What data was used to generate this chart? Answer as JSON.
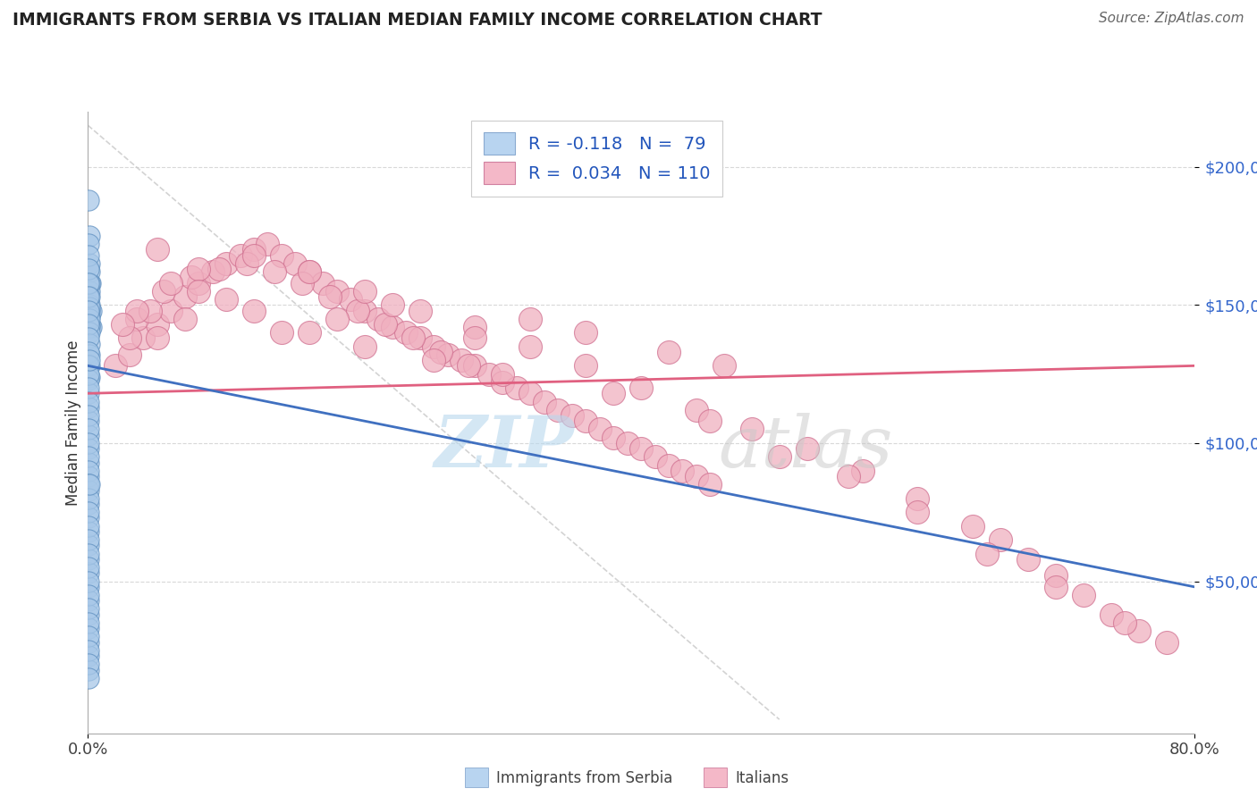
{
  "title": "IMMIGRANTS FROM SERBIA VS ITALIAN MEDIAN FAMILY INCOME CORRELATION CHART",
  "source": "Source: ZipAtlas.com",
  "ylabel": "Median Family Income",
  "xlim": [
    0.0,
    80.0
  ],
  "ylim": [
    -5000,
    220000
  ],
  "y_ticks": [
    50000,
    100000,
    150000,
    200000
  ],
  "serbia_color": "#a8c8e8",
  "serbia_edge_color": "#6090c0",
  "serbia_line_color": "#4070c0",
  "italian_color": "#f0b0c0",
  "italian_edge_color": "#d07090",
  "italian_line_color": "#e06080",
  "legend_label_blue": "R = -0.118   N =  79",
  "legend_label_pink": "R =  0.034   N = 110",
  "legend_color_blue": "#b8d4f0",
  "legend_color_pink": "#f4b8c8",
  "watermark_zip": "ZIP",
  "watermark_atlas": "atlas",
  "bottom_label_serbia": "Immigrants from Serbia",
  "bottom_label_italian": "Italians",
  "serbia_x": [
    0.05,
    0.08,
    0.12,
    0.15,
    0.2,
    0.25,
    0.05,
    0.08,
    0.1,
    0.12,
    0.05,
    0.08,
    0.1,
    0.12,
    0.05,
    0.08,
    0.1,
    0.05,
    0.08,
    0.1,
    0.05,
    0.08,
    0.05,
    0.08,
    0.05,
    0.08,
    0.05,
    0.08,
    0.05,
    0.08,
    0.05,
    0.08,
    0.05,
    0.05,
    0.05,
    0.05,
    0.05,
    0.05,
    0.05,
    0.05,
    0.05,
    0.05,
    0.05,
    0.05,
    0.05,
    0.05,
    0.05,
    0.05,
    0.05,
    0.05,
    0.05,
    0.05,
    0.05,
    0.05,
    0.05,
    0.05,
    0.05,
    0.05,
    0.05,
    0.05,
    0.05,
    0.05,
    0.05,
    0.05,
    0.05,
    0.05,
    0.05,
    0.05,
    0.05,
    0.05,
    0.05,
    0.05,
    0.05,
    0.05,
    0.05,
    0.05,
    0.05,
    0.08,
    0.12
  ],
  "serbia_y": [
    188000,
    175000,
    165000,
    158000,
    148000,
    142000,
    172000,
    162000,
    155000,
    148000,
    168000,
    158000,
    150000,
    143000,
    163000,
    153000,
    146000,
    158000,
    149000,
    142000,
    153000,
    145000,
    148000,
    140000,
    143000,
    136000,
    138000,
    132000,
    133000,
    128000,
    128000,
    124000,
    123000,
    118000,
    113000,
    108000,
    103000,
    98000,
    93000,
    88000,
    83000,
    78000,
    73000,
    68000,
    63000,
    58000,
    53000,
    48000,
    43000,
    38000,
    33000,
    28000,
    23000,
    18000,
    125000,
    120000,
    115000,
    110000,
    105000,
    100000,
    95000,
    90000,
    85000,
    80000,
    75000,
    70000,
    65000,
    60000,
    55000,
    50000,
    45000,
    40000,
    35000,
    30000,
    25000,
    20000,
    15000,
    130000,
    85000
  ],
  "italian_x": [
    2.0,
    3.0,
    4.0,
    5.0,
    6.0,
    7.0,
    8.0,
    9.0,
    10.0,
    11.0,
    12.0,
    13.0,
    14.0,
    15.0,
    16.0,
    17.0,
    18.0,
    19.0,
    20.0,
    21.0,
    22.0,
    23.0,
    24.0,
    25.0,
    26.0,
    27.0,
    28.0,
    29.0,
    30.0,
    31.0,
    32.0,
    33.0,
    34.0,
    35.0,
    36.0,
    37.0,
    38.0,
    39.0,
    40.0,
    41.0,
    42.0,
    43.0,
    44.0,
    45.0,
    3.5,
    5.5,
    7.5,
    9.5,
    11.5,
    13.5,
    15.5,
    17.5,
    19.5,
    21.5,
    23.5,
    25.5,
    27.5,
    5.0,
    8.0,
    12.0,
    16.0,
    20.0,
    24.0,
    28.0,
    32.0,
    36.0,
    40.0,
    44.0,
    48.0,
    52.0,
    56.0,
    60.0,
    64.0,
    66.0,
    68.0,
    70.0,
    72.0,
    74.0,
    76.0,
    78.0,
    50.0,
    55.0,
    60.0,
    65.0,
    70.0,
    75.0,
    45.0,
    38.0,
    30.0,
    25.0,
    20.0,
    16.0,
    12.0,
    8.0,
    6.0,
    4.5,
    3.0,
    22.0,
    18.0,
    14.0,
    10.0,
    7.0,
    5.0,
    3.5,
    2.5,
    28.0,
    32.0,
    36.0,
    42.0,
    46.0
  ],
  "italian_y": [
    128000,
    132000,
    138000,
    143000,
    148000,
    153000,
    158000,
    162000,
    165000,
    168000,
    170000,
    172000,
    168000,
    165000,
    162000,
    158000,
    155000,
    152000,
    148000,
    145000,
    142000,
    140000,
    138000,
    135000,
    132000,
    130000,
    128000,
    125000,
    122000,
    120000,
    118000,
    115000,
    112000,
    110000,
    108000,
    105000,
    102000,
    100000,
    98000,
    95000,
    92000,
    90000,
    88000,
    85000,
    145000,
    155000,
    160000,
    163000,
    165000,
    162000,
    158000,
    153000,
    148000,
    143000,
    138000,
    133000,
    128000,
    170000,
    163000,
    168000,
    162000,
    155000,
    148000,
    142000,
    135000,
    128000,
    120000,
    112000,
    105000,
    98000,
    90000,
    80000,
    70000,
    65000,
    58000,
    52000,
    45000,
    38000,
    32000,
    28000,
    95000,
    88000,
    75000,
    60000,
    48000,
    35000,
    108000,
    118000,
    125000,
    130000,
    135000,
    140000,
    148000,
    155000,
    158000,
    148000,
    138000,
    150000,
    145000,
    140000,
    152000,
    145000,
    138000,
    148000,
    143000,
    138000,
    145000,
    140000,
    133000,
    128000
  ],
  "serbia_trend_x": [
    0.0,
    80.0
  ],
  "serbia_trend_y": [
    128000,
    48000
  ],
  "italian_trend_x": [
    0.0,
    80.0
  ],
  "italian_trend_y": [
    118000,
    128000
  ]
}
